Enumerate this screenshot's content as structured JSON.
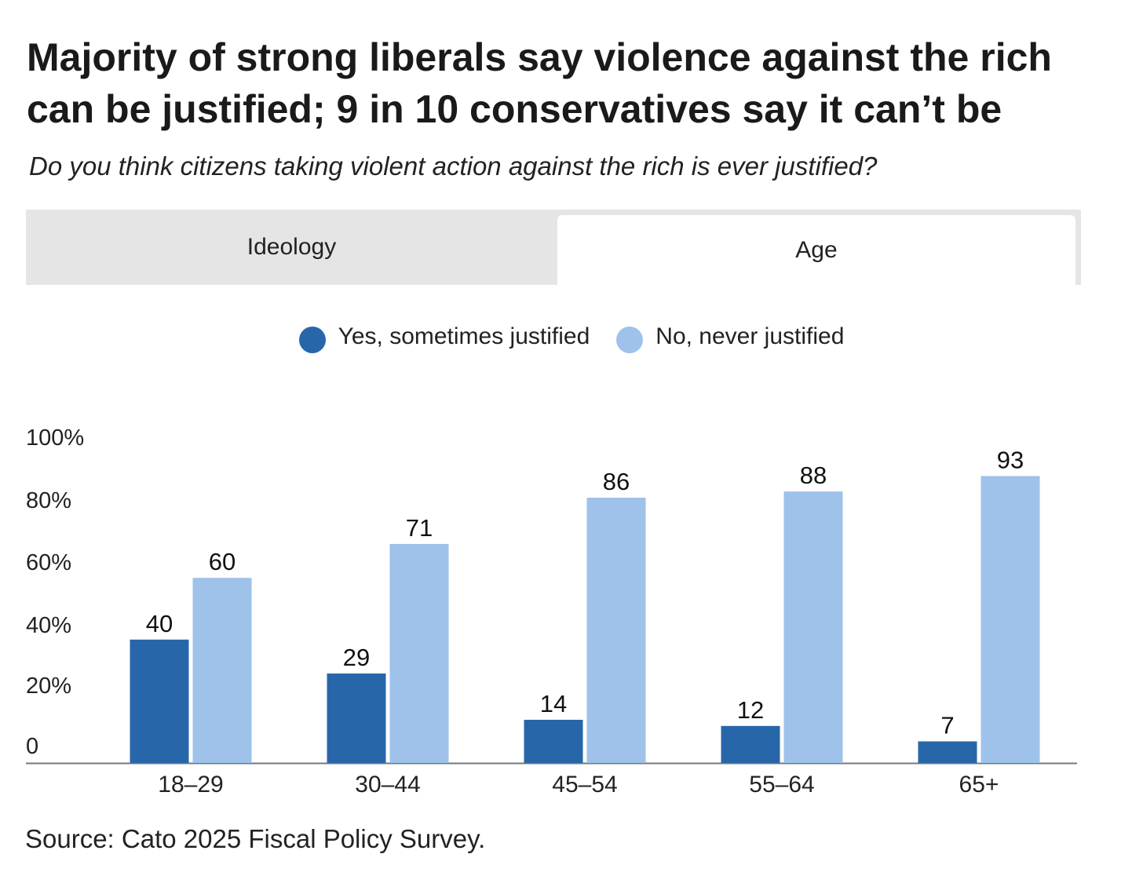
{
  "title": "Majority of strong liberals say violence against the rich can be justified; 9 in 10 conservatives say it can’t be",
  "subtitle": "Do you think citizens taking violent action against the rich is ever justified?",
  "tabs": [
    {
      "label": "Ideology",
      "active": false
    },
    {
      "label": "Age",
      "active": true
    }
  ],
  "source": "Source: Cato 2025 Fiscal Policy Survey.",
  "chart_data": {
    "type": "bar",
    "categories": [
      "18–29",
      "30–44",
      "45–54",
      "55–64",
      "65+"
    ],
    "series": [
      {
        "name": "Yes, sometimes justified",
        "color": "#2866aa",
        "values": [
          40,
          29,
          14,
          12,
          7
        ]
      },
      {
        "name": "No, never justified",
        "color": "#9ec2ea",
        "values": [
          60,
          71,
          86,
          88,
          93
        ]
      }
    ],
    "ylim": [
      0,
      100
    ],
    "yticks": [
      "0",
      "20%",
      "40%",
      "60%",
      "80%",
      "100%"
    ],
    "grid": false,
    "legend": "top-center"
  }
}
